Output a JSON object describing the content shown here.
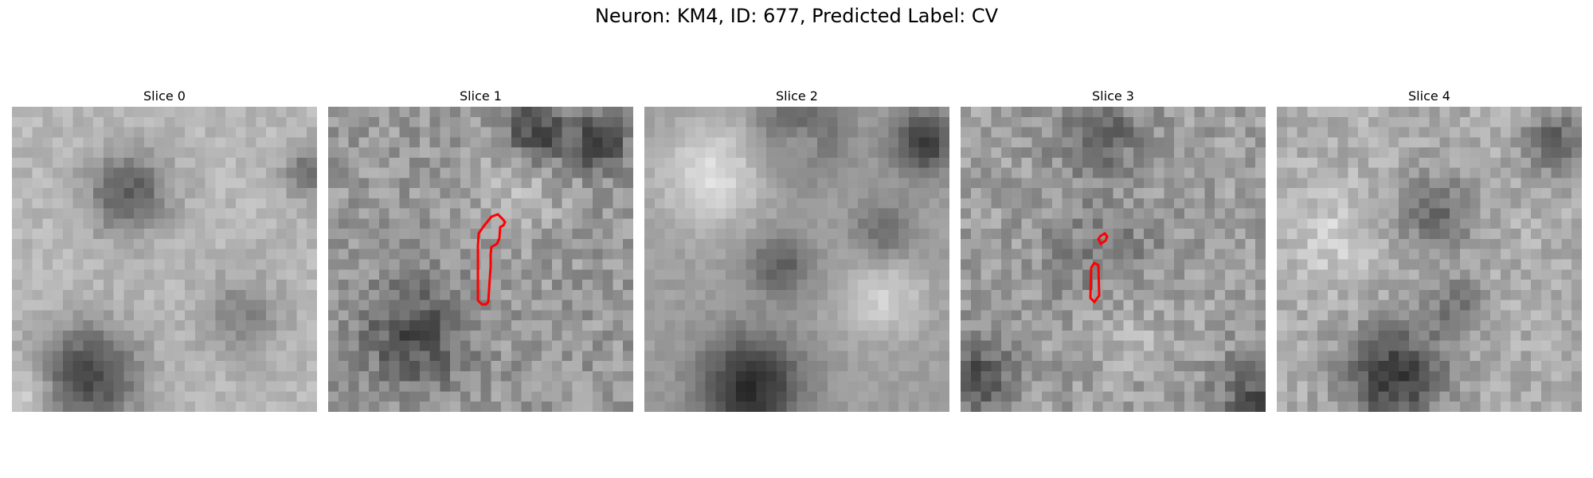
{
  "title": "Neuron: KM4, ID: 677, Predicted Label: CV",
  "colormap": "gray",
  "contour_color": "#ff0000",
  "panels": [
    {
      "title": "Slice 0",
      "has_contour": false
    },
    {
      "title": "Slice 1",
      "has_contour": true
    },
    {
      "title": "Slice 2",
      "has_contour": false
    },
    {
      "title": "Slice 3",
      "has_contour": true
    },
    {
      "title": "Slice 4",
      "has_contour": false
    }
  ]
}
